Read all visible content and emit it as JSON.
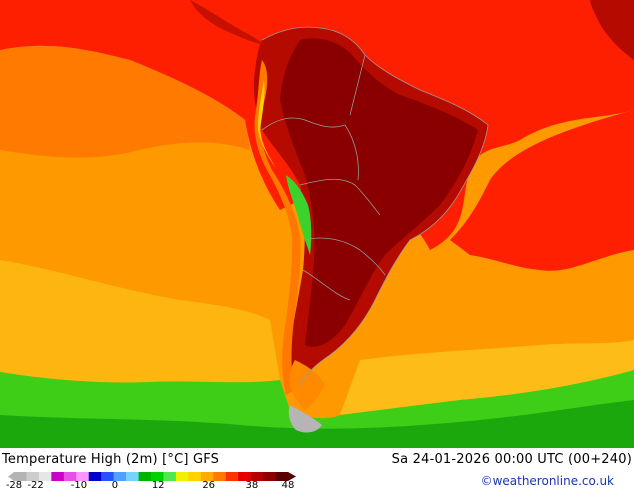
{
  "title": "Temperature High (2m) [°C] GFS",
  "datetime": "Sa 24-01-2026 00:00 UTC (00+240)",
  "copyright": "©weatheronline.co.uk",
  "legend": {
    "ticks": [
      "-28",
      "-22",
      "-10",
      "0",
      "12",
      "26",
      "38",
      "48"
    ],
    "tick_values": [
      -28,
      -22,
      -10,
      0,
      12,
      26,
      38,
      48
    ],
    "min": -28,
    "max": 48,
    "colors": [
      "#b4b4b4",
      "#cccccc",
      "#e6e6e6",
      "#c800c8",
      "#e650e6",
      "#ff96ff",
      "#0000c8",
      "#2850ff",
      "#50a0ff",
      "#78d2ff",
      "#00b400",
      "#00d200",
      "#50e650",
      "#f0f000",
      "#ffd200",
      "#ffaa00",
      "#ff7800",
      "#ff3200",
      "#e60000",
      "#b40000",
      "#8c0000",
      "#5a0000"
    ]
  },
  "colors": {
    "ocean_warm": "#fe9a00",
    "ocean_hot": "#fe1f00",
    "ocean_yellow": "#fdb914",
    "ocean_cool": "#3fce18",
    "land_hot": "#b40a00",
    "land_hottest": "#8a0000",
    "andes_yellow": "#ffd200",
    "andes_green": "#3cd22c",
    "border": "#999999"
  }
}
